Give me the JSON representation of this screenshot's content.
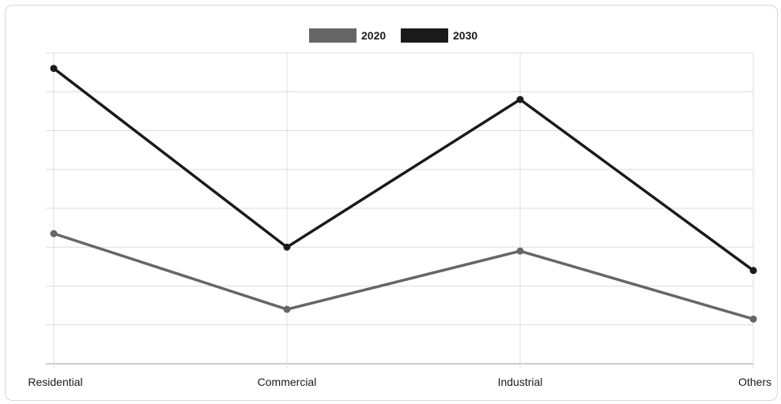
{
  "chart_data": {
    "type": "line",
    "categories": [
      "Residential",
      "Commercial",
      "Industrial",
      "Others"
    ],
    "series": [
      {
        "name": "2020",
        "values": [
          33.5,
          14,
          29,
          11.5
        ],
        "color": "#666666"
      },
      {
        "name": "2030",
        "values": [
          76,
          30,
          68,
          24
        ],
        "color": "#1a1a1a"
      }
    ],
    "ylim": [
      0,
      80
    ],
    "y_gridlines": [
      0,
      10,
      20,
      30,
      40,
      50,
      60,
      70,
      80
    ],
    "y_tick_labels_shown": false,
    "grid": true,
    "legend_position": "top-center"
  }
}
